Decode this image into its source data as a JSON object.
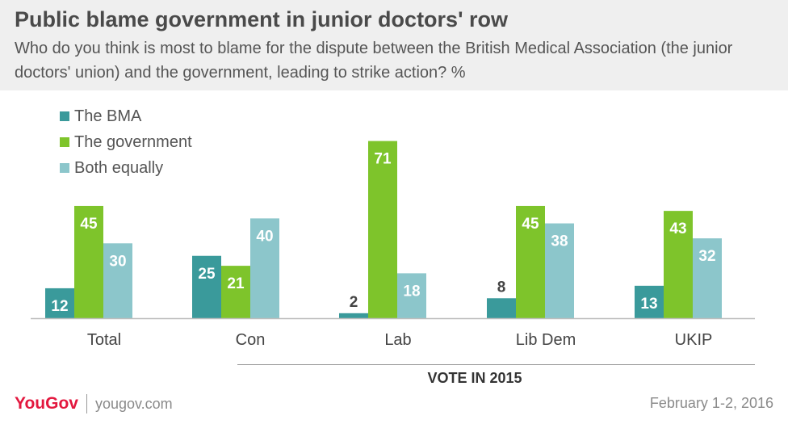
{
  "header": {
    "title": "Public blame government in junior doctors' row",
    "subtitle": "Who do you think is most to blame for the dispute between the British Medical Association (the junior doctors' union) and the government, leading to strike action? %"
  },
  "footer": {
    "brand": "YouGov",
    "site": "yougov.com",
    "date": "February 1-2, 2016"
  },
  "chart_data": {
    "type": "bar",
    "categories": [
      "Total",
      "Con",
      "Lab",
      "Lib Dem",
      "UKIP"
    ],
    "group_label": "VOTE IN 2015",
    "series": [
      {
        "name": "The BMA",
        "color": "#3a9a9b",
        "values": [
          12,
          25,
          2,
          8,
          13
        ]
      },
      {
        "name": "The government",
        "color": "#7ec42b",
        "values": [
          45,
          21,
          71,
          45,
          43
        ]
      },
      {
        "name": "Both equally",
        "color": "#8cc6cb",
        "values": [
          30,
          40,
          18,
          38,
          32
        ]
      }
    ],
    "legend_position": "top-left",
    "grid": false,
    "ylim": [
      0,
      71
    ]
  }
}
